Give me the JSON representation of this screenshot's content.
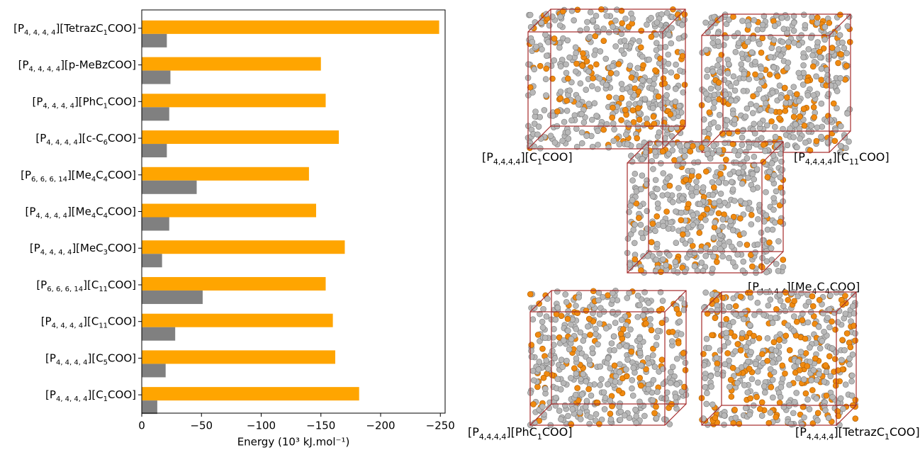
{
  "chart_data": {
    "type": "barh",
    "categories": [
      [
        "[P",
        "4, 4, 4, 4",
        "][TetrazC",
        "1",
        "COO]"
      ],
      [
        "[P",
        "4, 4, 4, 4",
        "][p-MeBzCOO]"
      ],
      [
        "[P",
        "4, 4, 4, 4",
        "][PhC",
        "1",
        "COO]"
      ],
      [
        "[P",
        "4, 4, 4, 4",
        "][c-C",
        "6",
        "COO]"
      ],
      [
        "[P",
        "6, 6, 6, 14",
        "][Me",
        "4",
        "C",
        "4",
        "COO]"
      ],
      [
        "[P",
        "4, 4, 4, 4",
        "][Me",
        "4",
        "C",
        "4",
        "COO]"
      ],
      [
        "[P",
        "4, 4, 4, 4",
        "][MeC",
        "3",
        "COO]"
      ],
      [
        "[P",
        "6, 6, 6, 14",
        "][C",
        "11",
        "COO]"
      ],
      [
        "[P",
        "4, 4, 4, 4",
        "][C",
        "11",
        "COO]"
      ],
      [
        "[P",
        "4, 4, 4, 4",
        "][C",
        "5",
        "COO]"
      ],
      [
        "[P",
        "4, 4, 4, 4",
        "][C",
        "1",
        "COO]"
      ]
    ],
    "series": [
      {
        "color": "#ffa500",
        "values": [
          -249,
          -150,
          -154,
          -165,
          -140,
          -146,
          -170,
          -154,
          -160,
          -162,
          -182
        ]
      },
      {
        "color": "#808080",
        "values": [
          -21,
          -24,
          -23,
          -21,
          -46,
          -23,
          -17,
          -51,
          -28,
          -20,
          -13
        ]
      }
    ],
    "xlabel": "Energy (10³ kJ.mol⁻¹)",
    "xlim": [
      0,
      -254
    ],
    "xticks": [
      0,
      {
        "value": -50,
        "label": "−50"
      },
      {
        "value": -100,
        "label": "−100"
      },
      {
        "value": -150,
        "label": "−150"
      },
      {
        "value": -200,
        "label": "−200"
      },
      {
        "value": -250,
        "label": "−250"
      }
    ]
  },
  "panels": [
    {
      "caption": [
        "[P",
        "4,4,4,4",
        "][C",
        "1",
        "COO]"
      ]
    },
    {
      "caption": [
        "[P",
        "4,4,4,4",
        "][C",
        "11",
        "COO]"
      ]
    },
    {
      "caption": [
        "[P",
        "4,4,4,4",
        "][Me",
        "4",
        "C",
        "4",
        "COO]"
      ]
    },
    {
      "caption": [
        "[P",
        "4,4,4,4",
        "][PhC",
        "1",
        "COO]"
      ]
    },
    {
      "caption": [
        "[P",
        "4,4,4,4",
        "][TetrazC",
        "1",
        "COO]"
      ]
    }
  ]
}
